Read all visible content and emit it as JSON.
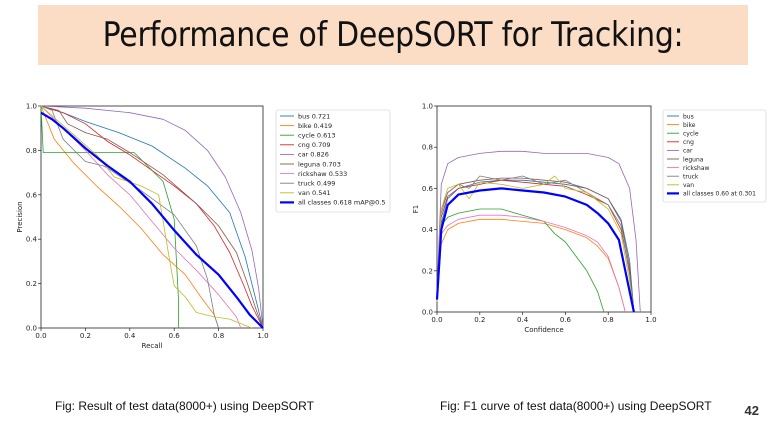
{
  "slide": {
    "title": "Performance of DeepSORT for Tracking:",
    "caption_left": "Fig: Result of test data(8000+) using DeepSORT",
    "caption_right": "Fig: F1 curve  of test data(8000+) using DeepSORT",
    "page_number": "42"
  },
  "chart_data": [
    {
      "type": "line",
      "title": "",
      "xlabel": "Recall",
      "ylabel": "Precision",
      "xlim": [
        0,
        1
      ],
      "ylim": [
        0,
        1
      ],
      "xticks": [
        "0.0",
        "0.2",
        "0.4",
        "0.6",
        "0.8",
        "1.0"
      ],
      "yticks": [
        "0.0",
        "0.2",
        "0.4",
        "0.6",
        "0.8",
        "1.0"
      ],
      "legend": "right",
      "series": [
        {
          "name": "bus",
          "label": "bus 0.721",
          "color": "#1f77b4",
          "x": [
            0,
            0.1,
            0.2,
            0.35,
            0.5,
            0.65,
            0.75,
            0.85,
            0.92,
            0.97,
            1.0
          ],
          "y": [
            1.0,
            0.97,
            0.93,
            0.88,
            0.82,
            0.72,
            0.64,
            0.52,
            0.32,
            0.12,
            0.0
          ]
        },
        {
          "name": "bike",
          "label": "bike 0.419",
          "color": "#ff7f0e",
          "x": [
            0,
            0.06,
            0.15,
            0.25,
            0.35,
            0.45,
            0.55,
            0.65,
            0.72,
            0.78,
            0.8
          ],
          "y": [
            1.0,
            0.85,
            0.74,
            0.64,
            0.55,
            0.45,
            0.33,
            0.24,
            0.14,
            0.06,
            0.0
          ]
        },
        {
          "name": "cycle",
          "label": "cycle 0.613",
          "color": "#2ca02c",
          "x": [
            0,
            0.01,
            0.06,
            0.09,
            0.17,
            0.3,
            0.42,
            0.55,
            0.6,
            0.62,
            0.62
          ],
          "y": [
            1.0,
            0.79,
            0.79,
            0.79,
            0.79,
            0.79,
            0.79,
            0.66,
            0.49,
            0.12,
            0.0
          ]
        },
        {
          "name": "cng",
          "label": "cng 0.709",
          "color": "#d62728",
          "x": [
            0,
            0.1,
            0.2,
            0.3,
            0.4,
            0.5,
            0.6,
            0.7,
            0.78,
            0.85,
            0.91,
            0.95,
            1.0
          ],
          "y": [
            1.0,
            0.97,
            0.92,
            0.84,
            0.78,
            0.71,
            0.64,
            0.56,
            0.46,
            0.34,
            0.2,
            0.1,
            0.0
          ]
        },
        {
          "name": "car",
          "label": "car 0.826",
          "color": "#9467bd",
          "x": [
            0,
            0.2,
            0.4,
            0.55,
            0.65,
            0.75,
            0.83,
            0.9,
            0.95,
            0.98,
            1.0
          ],
          "y": [
            1.0,
            0.99,
            0.97,
            0.94,
            0.89,
            0.8,
            0.68,
            0.52,
            0.35,
            0.18,
            0.0
          ]
        },
        {
          "name": "leguna",
          "label": "leguna 0.703",
          "color": "#8c564b",
          "x": [
            0,
            0.08,
            0.12,
            0.2,
            0.3,
            0.4,
            0.55,
            0.7,
            0.8,
            0.88,
            0.93,
            0.97,
            1.0
          ],
          "y": [
            1.0,
            0.98,
            0.92,
            0.88,
            0.85,
            0.79,
            0.69,
            0.56,
            0.46,
            0.34,
            0.2,
            0.08,
            0.0
          ]
        },
        {
          "name": "rickshaw",
          "label": "rickshaw 0.533",
          "color": "#e377c2",
          "x": [
            0,
            0.1,
            0.2,
            0.3,
            0.4,
            0.5,
            0.6,
            0.7,
            0.8,
            0.88,
            0.9
          ],
          "y": [
            1.0,
            0.9,
            0.8,
            0.69,
            0.6,
            0.48,
            0.36,
            0.26,
            0.15,
            0.05,
            0.0
          ]
        },
        {
          "name": "truck",
          "label": "truck 0.499",
          "color": "#7f7f7f",
          "x": [
            0,
            0.05,
            0.1,
            0.2,
            0.28,
            0.3,
            0.45,
            0.6,
            0.7,
            0.75,
            0.78,
            0.8
          ],
          "y": [
            1.0,
            0.98,
            0.85,
            0.75,
            0.73,
            0.72,
            0.62,
            0.51,
            0.37,
            0.22,
            0.06,
            0.0
          ]
        },
        {
          "name": "van",
          "label": "van 0.541",
          "color": "#bcbd22",
          "x": [
            0,
            0.25,
            0.33,
            0.45,
            0.53,
            0.58,
            0.6,
            0.65,
            0.7,
            0.78,
            0.85,
            0.9,
            0.95
          ],
          "y": [
            1.0,
            0.78,
            0.68,
            0.64,
            0.6,
            0.3,
            0.19,
            0.14,
            0.07,
            0.05,
            0.04,
            0.02,
            0.0
          ]
        },
        {
          "name": "all classes",
          "label": "all classes 0.618 mAP@0.5",
          "color": "#0000ff",
          "bold": true,
          "x": [
            0,
            0.05,
            0.1,
            0.2,
            0.3,
            0.4,
            0.5,
            0.6,
            0.7,
            0.8,
            0.88,
            0.94,
            1.0
          ],
          "y": [
            0.97,
            0.94,
            0.9,
            0.81,
            0.73,
            0.66,
            0.56,
            0.44,
            0.33,
            0.24,
            0.14,
            0.06,
            0.0
          ]
        }
      ]
    },
    {
      "type": "line",
      "title": "",
      "xlabel": "Confidence",
      "ylabel": "F1",
      "xlim": [
        0,
        1
      ],
      "ylim": [
        0,
        1
      ],
      "xticks": [
        "0.0",
        "0.2",
        "0.4",
        "0.6",
        "0.8",
        "1.0"
      ],
      "yticks": [
        "0.0",
        "0.2",
        "0.4",
        "0.6",
        "0.8",
        "1.0"
      ],
      "legend": "right",
      "series": [
        {
          "name": "bus",
          "label": "bus",
          "color": "#1f77b4",
          "x": [
            0,
            0.02,
            0.05,
            0.1,
            0.2,
            0.3,
            0.4,
            0.5,
            0.6,
            0.7,
            0.8,
            0.86,
            0.9,
            0.92
          ],
          "y": [
            0.08,
            0.43,
            0.55,
            0.6,
            0.63,
            0.64,
            0.64,
            0.63,
            0.62,
            0.6,
            0.55,
            0.45,
            0.25,
            0.0
          ]
        },
        {
          "name": "bike",
          "label": "bike",
          "color": "#ff7f0e",
          "x": [
            0,
            0.02,
            0.05,
            0.1,
            0.2,
            0.3,
            0.4,
            0.5,
            0.6,
            0.7,
            0.75,
            0.8,
            0.85,
            0.88
          ],
          "y": [
            0.05,
            0.33,
            0.4,
            0.43,
            0.45,
            0.45,
            0.44,
            0.43,
            0.4,
            0.36,
            0.32,
            0.26,
            0.12,
            0.0
          ]
        },
        {
          "name": "cycle",
          "label": "cycle",
          "color": "#2ca02c",
          "x": [
            0,
            0.02,
            0.05,
            0.1,
            0.2,
            0.3,
            0.4,
            0.5,
            0.55,
            0.6,
            0.65,
            0.7,
            0.75,
            0.78
          ],
          "y": [
            0.1,
            0.42,
            0.46,
            0.48,
            0.5,
            0.5,
            0.47,
            0.44,
            0.38,
            0.34,
            0.27,
            0.2,
            0.1,
            0.0
          ]
        },
        {
          "name": "cng",
          "label": "cng",
          "color": "#d62728",
          "x": [
            0,
            0.02,
            0.05,
            0.1,
            0.2,
            0.3,
            0.4,
            0.5,
            0.6,
            0.7,
            0.8,
            0.86,
            0.9,
            0.92
          ],
          "y": [
            0.08,
            0.46,
            0.56,
            0.6,
            0.62,
            0.64,
            0.63,
            0.62,
            0.61,
            0.57,
            0.52,
            0.4,
            0.2,
            0.0
          ]
        },
        {
          "name": "car",
          "label": "car",
          "color": "#9467bd",
          "x": [
            0,
            0.02,
            0.05,
            0.1,
            0.2,
            0.3,
            0.4,
            0.5,
            0.6,
            0.7,
            0.8,
            0.85,
            0.9,
            0.93,
            0.95
          ],
          "y": [
            0.1,
            0.62,
            0.72,
            0.75,
            0.77,
            0.78,
            0.78,
            0.77,
            0.77,
            0.77,
            0.75,
            0.72,
            0.6,
            0.35,
            0.0
          ]
        },
        {
          "name": "leguna",
          "label": "leguna",
          "color": "#8c564b",
          "x": [
            0,
            0.02,
            0.05,
            0.1,
            0.2,
            0.3,
            0.4,
            0.5,
            0.6,
            0.7,
            0.8,
            0.86,
            0.9,
            0.92
          ],
          "y": [
            0.08,
            0.5,
            0.58,
            0.62,
            0.64,
            0.65,
            0.65,
            0.64,
            0.63,
            0.6,
            0.55,
            0.44,
            0.22,
            0.0
          ]
        },
        {
          "name": "rickshaw",
          "label": "rickshaw",
          "color": "#e377c2",
          "x": [
            0,
            0.02,
            0.05,
            0.1,
            0.2,
            0.3,
            0.4,
            0.5,
            0.6,
            0.7,
            0.75,
            0.8,
            0.85,
            0.88
          ],
          "y": [
            0.06,
            0.38,
            0.42,
            0.45,
            0.47,
            0.47,
            0.46,
            0.44,
            0.41,
            0.37,
            0.34,
            0.27,
            0.12,
            0.0
          ]
        },
        {
          "name": "truck",
          "label": "truck",
          "color": "#7f7f7f",
          "x": [
            0,
            0.02,
            0.05,
            0.1,
            0.15,
            0.2,
            0.3,
            0.4,
            0.5,
            0.6,
            0.7,
            0.8,
            0.86,
            0.9,
            0.92
          ],
          "y": [
            0.1,
            0.48,
            0.58,
            0.62,
            0.6,
            0.66,
            0.64,
            0.66,
            0.62,
            0.64,
            0.58,
            0.52,
            0.42,
            0.18,
            0.0
          ]
        },
        {
          "name": "van",
          "label": "van",
          "color": "#bcbd22",
          "x": [
            0,
            0.02,
            0.05,
            0.1,
            0.15,
            0.2,
            0.3,
            0.4,
            0.5,
            0.55,
            0.6,
            0.7,
            0.8,
            0.86,
            0.9,
            0.92
          ],
          "y": [
            0.08,
            0.5,
            0.6,
            0.62,
            0.55,
            0.63,
            0.62,
            0.6,
            0.62,
            0.66,
            0.6,
            0.58,
            0.5,
            0.38,
            0.15,
            0.0
          ]
        },
        {
          "name": "all classes",
          "label": "all classes 0.60 at 0.301",
          "color": "#0000ff",
          "bold": true,
          "x": [
            0,
            0.02,
            0.05,
            0.1,
            0.2,
            0.301,
            0.4,
            0.5,
            0.6,
            0.7,
            0.75,
            0.8,
            0.85,
            0.88,
            0.9,
            0.92
          ],
          "y": [
            0.06,
            0.4,
            0.52,
            0.57,
            0.59,
            0.6,
            0.59,
            0.58,
            0.56,
            0.52,
            0.48,
            0.43,
            0.35,
            0.2,
            0.1,
            0.0
          ]
        }
      ]
    }
  ]
}
